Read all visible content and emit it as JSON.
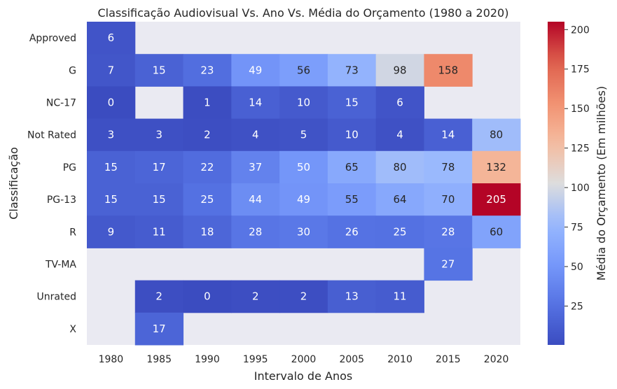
{
  "chart_data": {
    "type": "heatmap",
    "title": "Classificação Audiovisual Vs. Ano Vs. Média do Orçamento (1980 a 2020)",
    "xlabel": "Intervalo de Anos",
    "ylabel": "Classificação",
    "x": [
      "1980",
      "1985",
      "1990",
      "1995",
      "2000",
      "2005",
      "2010",
      "2015",
      "2020"
    ],
    "y": [
      "Approved",
      "G",
      "NC-17",
      "Not Rated",
      "PG",
      "PG-13",
      "R",
      "TV-MA",
      "Unrated",
      "X"
    ],
    "values": [
      [
        6,
        null,
        null,
        null,
        null,
        null,
        null,
        null,
        null
      ],
      [
        7,
        15,
        23,
        49,
        56,
        73,
        98,
        158,
        null
      ],
      [
        0,
        null,
        1,
        14,
        10,
        15,
        6,
        null,
        null
      ],
      [
        3,
        3,
        2,
        4,
        5,
        10,
        4,
        14,
        80
      ],
      [
        15,
        17,
        22,
        37,
        50,
        65,
        80,
        78,
        132
      ],
      [
        15,
        15,
        25,
        44,
        49,
        55,
        64,
        70,
        205
      ],
      [
        9,
        11,
        18,
        28,
        30,
        26,
        25,
        28,
        60
      ],
      [
        null,
        null,
        null,
        null,
        null,
        null,
        null,
        27,
        null
      ],
      [
        null,
        2,
        0,
        2,
        2,
        13,
        11,
        null,
        null
      ],
      [
        null,
        17,
        null,
        null,
        null,
        null,
        null,
        null,
        null
      ]
    ],
    "colorbar": {
      "label": "Média do Orçamento (Em milhões)",
      "range": [
        0.4,
        205
      ],
      "ticks": [
        25,
        50,
        75,
        100,
        125,
        150,
        175,
        200
      ],
      "colormap": "coolwarm"
    },
    "missing_color": "#eaeaf2"
  }
}
